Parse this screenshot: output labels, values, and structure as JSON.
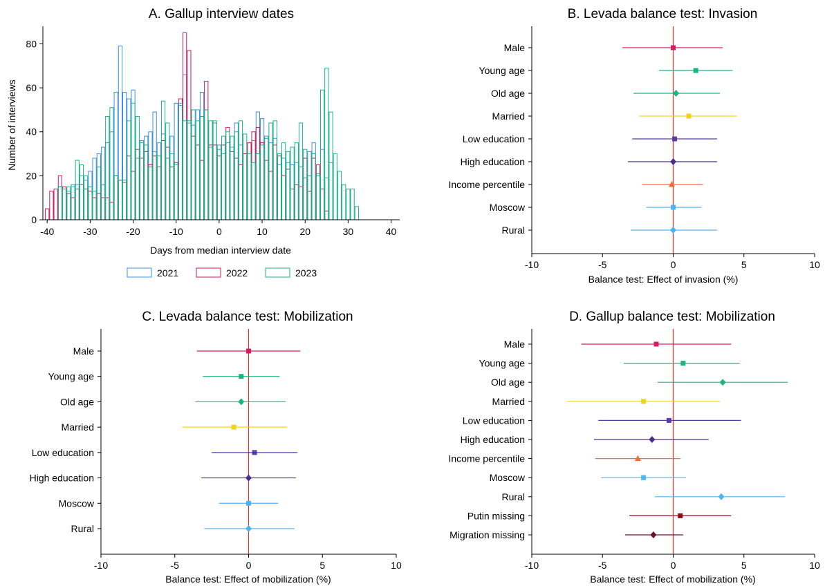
{
  "colors": {
    "y2021": "#3b8ee0",
    "y2022": "#c8185c",
    "y2023": "#19b187",
    "zero_line": "#e03030",
    "rows": {
      "Male": "#d81b60",
      "Young age": "#1bb57e",
      "Old age": "#1bb57e",
      "Married": "#f2d21b",
      "Low education": "#5b3ba8",
      "High education": "#4a2f8f",
      "Income percentile": "#f26b3a",
      "Moscow": "#4db3f2",
      "Rural": "#4db3f2",
      "Putin missing": "#8b0f1a",
      "Migration missing": "#6b1222"
    }
  },
  "chart_data": [
    {
      "id": "A",
      "type": "bar",
      "title": "A. Gallup interview dates",
      "xlabel": "Days from median interview date",
      "ylabel": "Number of interviews",
      "xlim": [
        -41,
        42
      ],
      "ylim": [
        0,
        88
      ],
      "xticks": [
        -40,
        -30,
        -20,
        -10,
        0,
        10,
        20,
        30,
        40
      ],
      "yticks": [
        0,
        20,
        40,
        60,
        80
      ],
      "legend_position": "bottom",
      "grid": false,
      "x_start": -40,
      "series": [
        {
          "name": "2021",
          "color_key": "y2021",
          "start": -37,
          "values": [
            15,
            14,
            13,
            15,
            16,
            20,
            18,
            22,
            28,
            30,
            33,
            35,
            40,
            58,
            79,
            58,
            55,
            59,
            28,
            35,
            38,
            40,
            49,
            35,
            39,
            28,
            38,
            53,
            52,
            66,
            44,
            43,
            50,
            58,
            50,
            33,
            44,
            34,
            30,
            35,
            33,
            44,
            34,
            30,
            35,
            36,
            49,
            46,
            38,
            35,
            37,
            25,
            28,
            26,
            25,
            26,
            24,
            19,
            31,
            35,
            21,
            32,
            19,
            26
          ]
        },
        {
          "name": "2022",
          "color_key": "y2022",
          "start": -40,
          "values": [
            5,
            13,
            14,
            20,
            15,
            12,
            10,
            14,
            16,
            14,
            13,
            10,
            12,
            10,
            10,
            8,
            20,
            18,
            17,
            29,
            22,
            32,
            28,
            31,
            25,
            29,
            24,
            36,
            33,
            24,
            26,
            55,
            85,
            77,
            38,
            34,
            27,
            63,
            34,
            34,
            29,
            34,
            42,
            31,
            28,
            25,
            30,
            35,
            40,
            42,
            35,
            27,
            22,
            34,
            29,
            20,
            23,
            14,
            16,
            15,
            28,
            13,
            28,
            25,
            14,
            4
          ]
        },
        {
          "name": "2023",
          "color_key": "y2023",
          "start": -37,
          "values": [
            15,
            14,
            15,
            16,
            27,
            25,
            20,
            15,
            13,
            24,
            16,
            47,
            51,
            20,
            18,
            18,
            45,
            53,
            47,
            36,
            34,
            24,
            31,
            29,
            54,
            44,
            30,
            25,
            53,
            45,
            45,
            50,
            45,
            47,
            50,
            45,
            45,
            32,
            38,
            40,
            38,
            40,
            45,
            39,
            30,
            26,
            30,
            34,
            37,
            44,
            45,
            30,
            35,
            31,
            33,
            35,
            44,
            32,
            20,
            30,
            20,
            59,
            69,
            49,
            30,
            22,
            16,
            14,
            14,
            6
          ]
        }
      ]
    },
    {
      "id": "B",
      "type": "scatter",
      "title": "B. Levada balance test: Invasion",
      "xlabel": "Balance test: Effect of invasion (%)",
      "xlim": [
        -10,
        10
      ],
      "xticks": [
        -10,
        -5,
        0,
        5,
        10
      ],
      "grid": false,
      "rows": [
        {
          "label": "Male",
          "est": 0.0,
          "lo": -3.6,
          "hi": 3.5,
          "marker": "square"
        },
        {
          "label": "Young age",
          "est": 1.6,
          "lo": -1.0,
          "hi": 4.2,
          "marker": "square"
        },
        {
          "label": "Old age",
          "est": 0.2,
          "lo": -2.8,
          "hi": 3.3,
          "marker": "diamond"
        },
        {
          "label": "Married",
          "est": 1.1,
          "lo": -2.4,
          "hi": 4.5,
          "marker": "square"
        },
        {
          "label": "Low education",
          "est": 0.1,
          "lo": -2.9,
          "hi": 3.1,
          "marker": "square"
        },
        {
          "label": "High education",
          "est": 0.0,
          "lo": -3.2,
          "hi": 3.1,
          "marker": "diamond"
        },
        {
          "label": "Income percentile",
          "est": -0.1,
          "lo": -2.2,
          "hi": 2.1,
          "marker": "triangle"
        },
        {
          "label": "Moscow",
          "est": 0.0,
          "lo": -1.9,
          "hi": 2.0,
          "marker": "square"
        },
        {
          "label": "Rural",
          "est": 0.0,
          "lo": -3.0,
          "hi": 3.1,
          "marker": "diamond"
        }
      ]
    },
    {
      "id": "C",
      "type": "scatter",
      "title": "C. Levada balance test: Mobilization",
      "xlabel": "Balance test: Effect of mobilization (%)",
      "xlim": [
        -10,
        10
      ],
      "xticks": [
        -10,
        -5,
        0,
        5,
        10
      ],
      "grid": false,
      "rows": [
        {
          "label": "Male",
          "est": 0.0,
          "lo": -3.5,
          "hi": 3.5,
          "marker": "square"
        },
        {
          "label": "Young age",
          "est": -0.5,
          "lo": -3.1,
          "hi": 2.1,
          "marker": "square"
        },
        {
          "label": "Old age",
          "est": -0.5,
          "lo": -3.6,
          "hi": 2.5,
          "marker": "diamond"
        },
        {
          "label": "Married",
          "est": -1.0,
          "lo": -4.5,
          "hi": 2.6,
          "marker": "square"
        },
        {
          "label": "Low education",
          "est": 0.4,
          "lo": -2.5,
          "hi": 3.3,
          "marker": "square"
        },
        {
          "label": "High education",
          "est": 0.0,
          "lo": -3.2,
          "hi": 3.2,
          "marker": "diamond"
        },
        {
          "label": "Moscow",
          "est": 0.0,
          "lo": -2.0,
          "hi": 2.0,
          "marker": "square"
        },
        {
          "label": "Rural",
          "est": 0.0,
          "lo": -3.0,
          "hi": 3.1,
          "marker": "diamond"
        }
      ]
    },
    {
      "id": "D",
      "type": "scatter",
      "title": "D. Gallup balance test: Mobilization",
      "xlabel": "Balance test: Effect of mobilization (%)",
      "xlim": [
        -10,
        10
      ],
      "xticks": [
        -10,
        -5,
        0,
        5,
        10
      ],
      "grid": false,
      "rows": [
        {
          "label": "Male",
          "est": -1.2,
          "lo": -6.5,
          "hi": 4.1,
          "marker": "square"
        },
        {
          "label": "Young age",
          "est": 0.7,
          "lo": -3.5,
          "hi": 4.7,
          "marker": "square"
        },
        {
          "label": "Old age",
          "est": 3.5,
          "lo": -1.1,
          "hi": 8.1,
          "marker": "diamond"
        },
        {
          "label": "Married",
          "est": -2.1,
          "lo": -7.5,
          "hi": 3.3,
          "marker": "square"
        },
        {
          "label": "Low education",
          "est": -0.3,
          "lo": -5.3,
          "hi": 4.8,
          "marker": "square"
        },
        {
          "label": "High education",
          "est": -1.5,
          "lo": -5.6,
          "hi": 2.5,
          "marker": "diamond"
        },
        {
          "label": "Income percentile",
          "est": -2.5,
          "lo": -5.5,
          "hi": 0.5,
          "marker": "triangle"
        },
        {
          "label": "Moscow",
          "est": -2.1,
          "lo": -5.1,
          "hi": 0.9,
          "marker": "square"
        },
        {
          "label": "Rural",
          "est": 3.4,
          "lo": -1.3,
          "hi": 7.9,
          "marker": "diamond"
        },
        {
          "label": "Putin missing",
          "est": 0.5,
          "lo": -3.1,
          "hi": 4.1,
          "marker": "square"
        },
        {
          "label": "Migration missing",
          "est": -1.4,
          "lo": -3.4,
          "hi": 0.7,
          "marker": "diamond"
        }
      ]
    }
  ]
}
